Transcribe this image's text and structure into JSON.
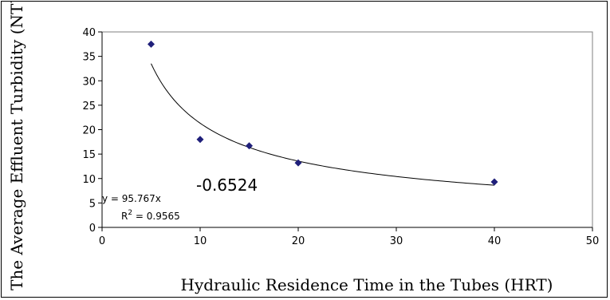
{
  "chart_data": {
    "type": "scatter",
    "title": "",
    "xlabel": "Hydraulic Residence Time in the Tubes (HRT)",
    "ylabel": "The Average Effluent Turbidity (NTU)",
    "xlim": [
      0,
      50
    ],
    "ylim": [
      0,
      40
    ],
    "xticks": [
      0,
      10,
      20,
      30,
      40,
      50
    ],
    "yticks": [
      0,
      5,
      10,
      15,
      20,
      25,
      30,
      35,
      40
    ],
    "grid": false,
    "legend": "none",
    "marker_color": "#1f1f7a",
    "line_color": "#000000",
    "points": [
      {
        "x": 5,
        "y": 37.5
      },
      {
        "x": 10,
        "y": 18
      },
      {
        "x": 15,
        "y": 16.7
      },
      {
        "x": 20,
        "y": 13.2
      },
      {
        "x": 40,
        "y": 9.3
      }
    ],
    "trendline": {
      "type": "power",
      "a": 95.767,
      "b": -0.6524,
      "equation_prefix": "y = 95.767x",
      "exponent_text": "-0.6524",
      "r2_prefix": "R",
      "r2_sup": "2",
      "r2_suffix": " = 0.9565"
    }
  }
}
